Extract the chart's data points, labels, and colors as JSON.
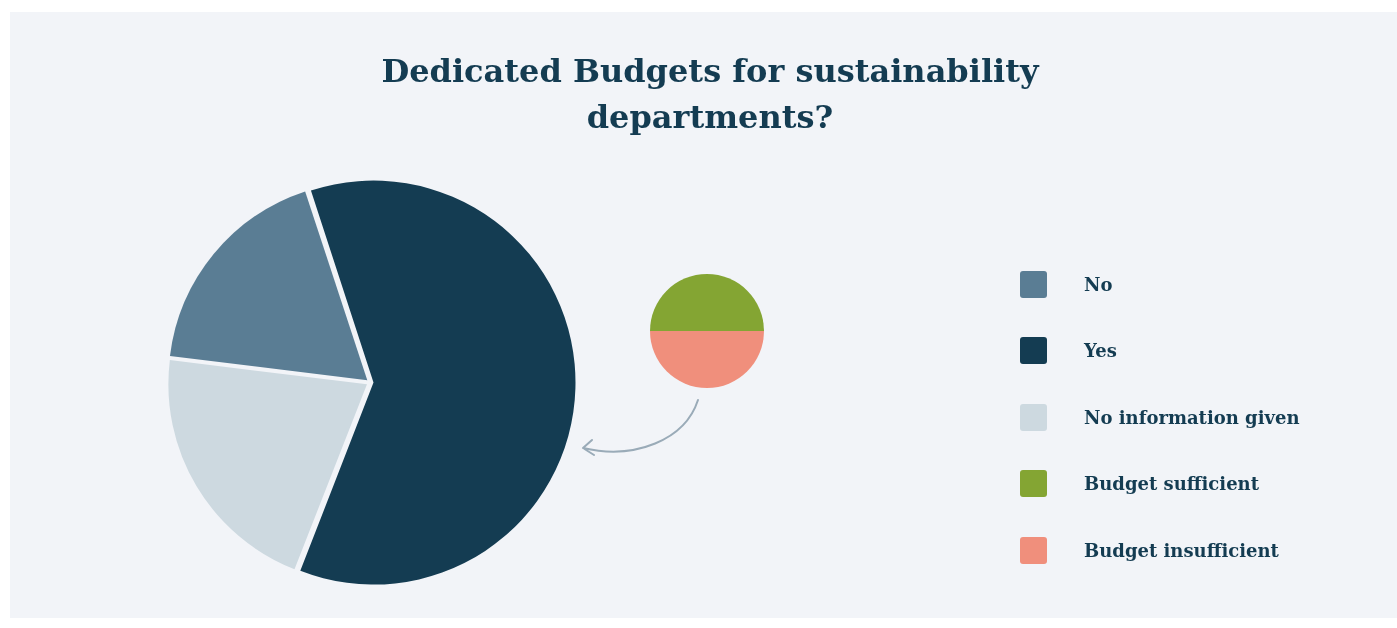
{
  "chart_data": [
    {
      "type": "pie",
      "title": "Dedicated Budgets for sustainability departments?",
      "categories": [
        "No",
        "Yes",
        "No information given"
      ],
      "values": [
        18,
        61,
        21
      ],
      "colors": [
        "#5a7d94",
        "#143c52",
        "#cdd9e0"
      ],
      "legend": "right"
    },
    {
      "type": "pie",
      "categories": [
        "Budget sufficient",
        "Budget insufficient"
      ],
      "values": [
        50,
        50
      ],
      "colors": [
        "#84a533",
        "#f08f7c"
      ],
      "legend": "right"
    }
  ]
}
